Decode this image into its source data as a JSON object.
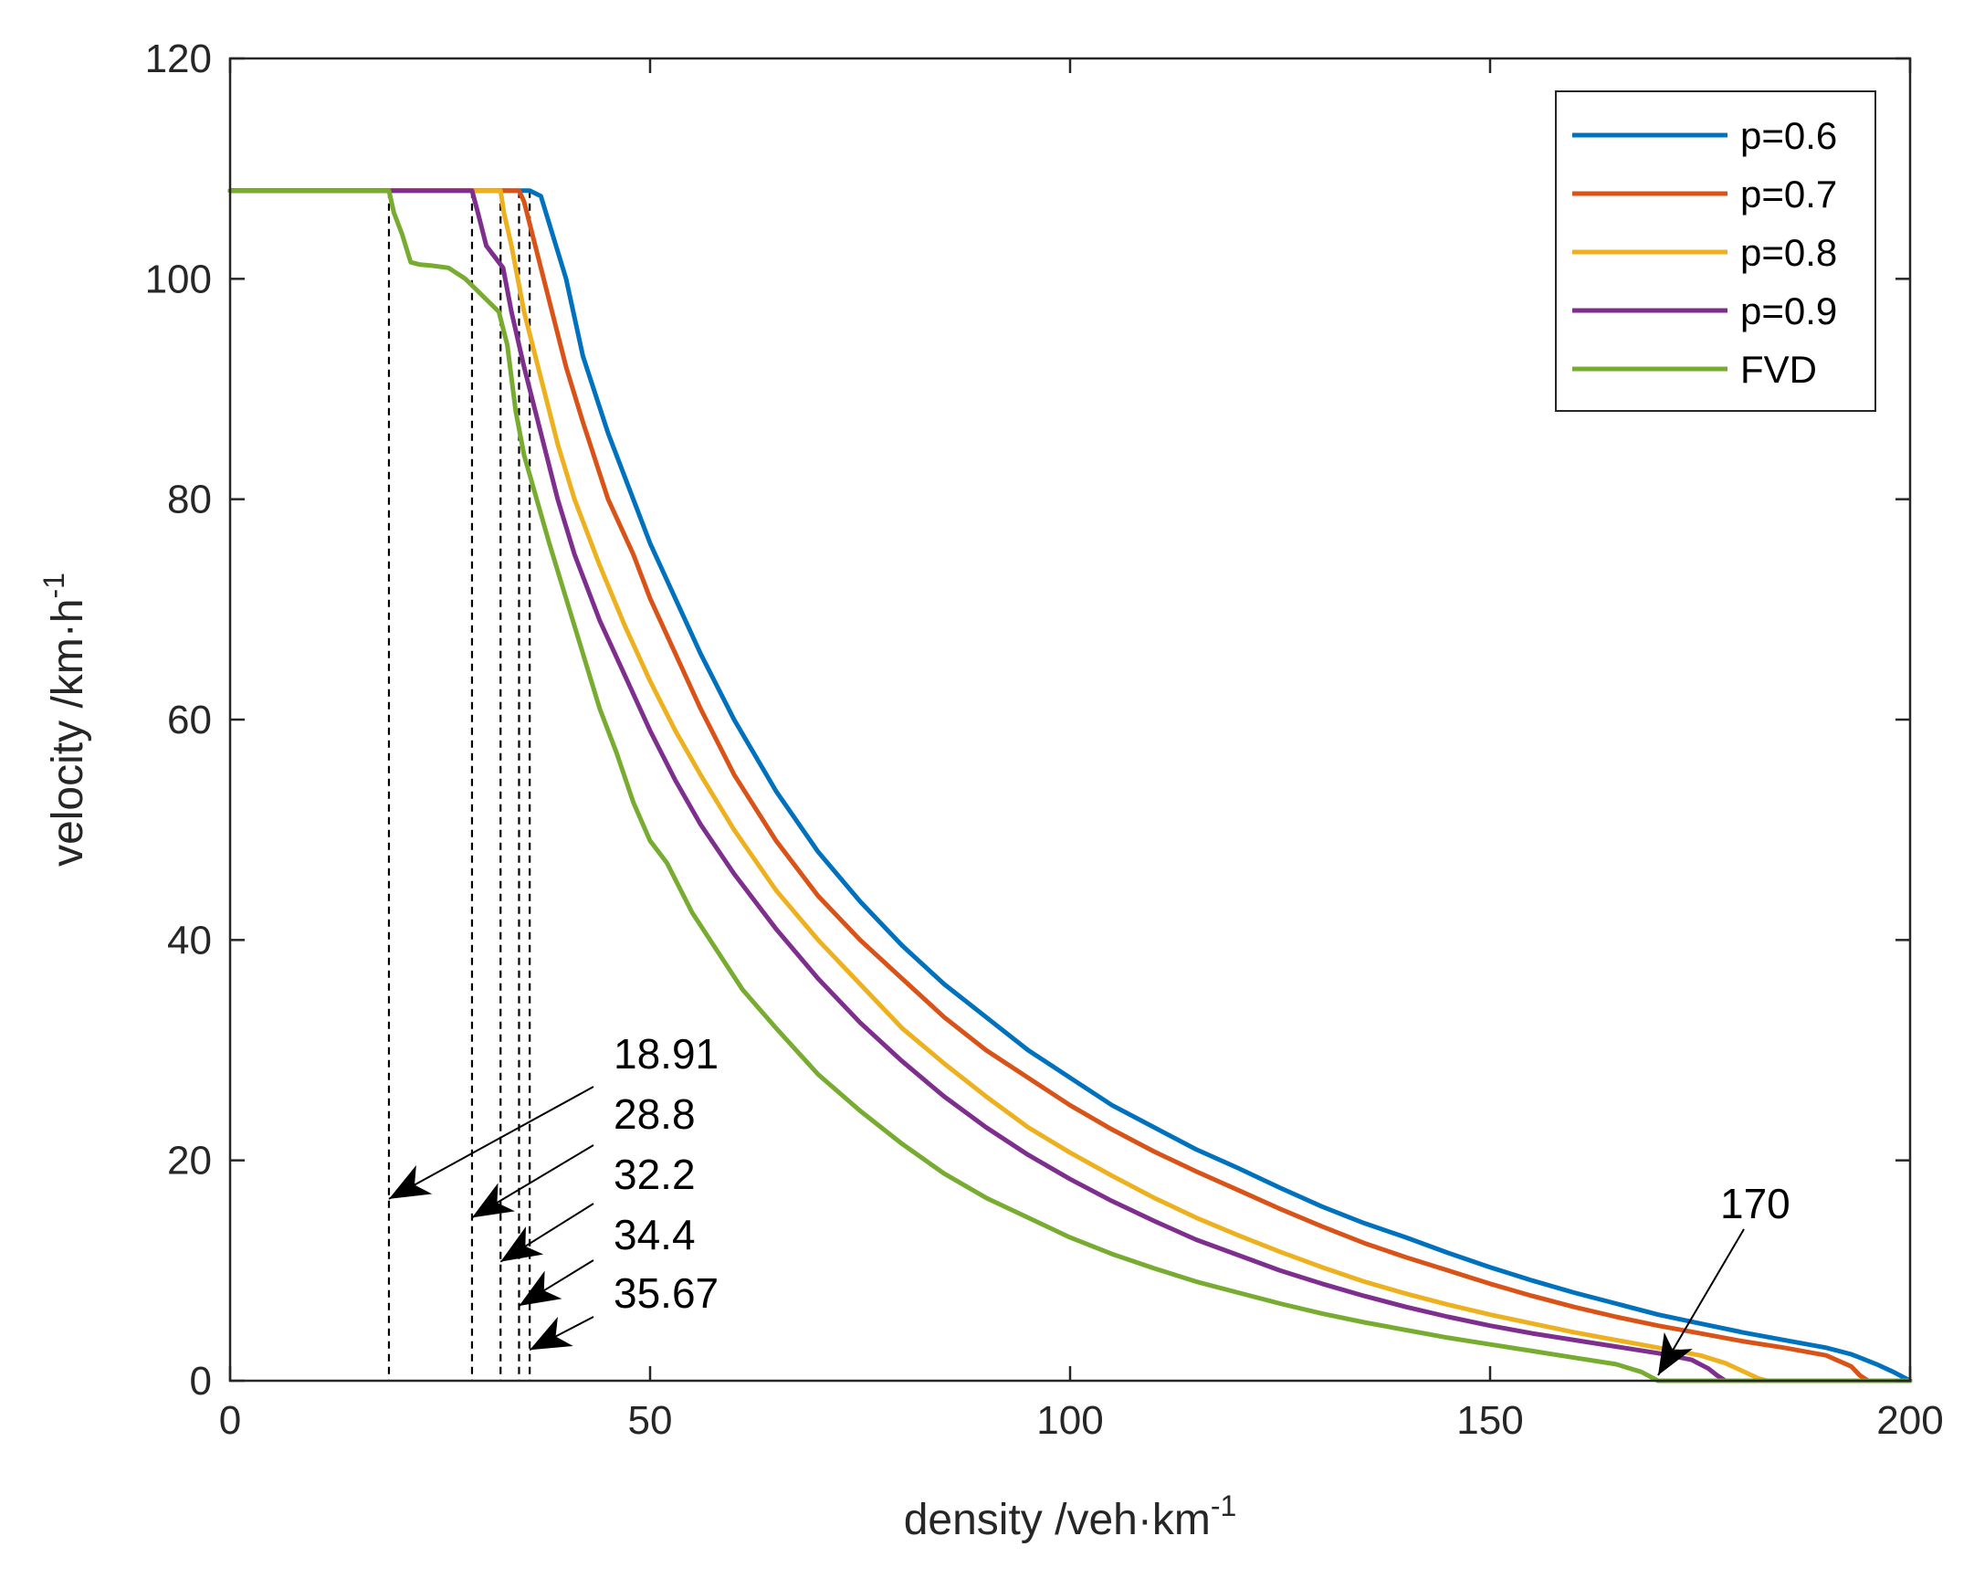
{
  "chart_data": {
    "type": "line",
    "title": "",
    "xlabel": "density /veh·km",
    "xlabel_sup": "-1",
    "ylabel": "velocity /km·h",
    "ylabel_sup": "-1",
    "xlim": [
      0,
      200
    ],
    "ylim": [
      0,
      120
    ],
    "xticks": [
      0,
      50,
      100,
      150,
      200
    ],
    "yticks": [
      0,
      20,
      40,
      60,
      80,
      100,
      120
    ],
    "grid": false,
    "legend_position": "top-right",
    "series": [
      {
        "name": "p=0.6",
        "color": "#0072BD",
        "points": [
          [
            0,
            108
          ],
          [
            35.67,
            108
          ],
          [
            37,
            107.5
          ],
          [
            38,
            105
          ],
          [
            40,
            100
          ],
          [
            42,
            93
          ],
          [
            45,
            86
          ],
          [
            48,
            80
          ],
          [
            50,
            76
          ],
          [
            53,
            71
          ],
          [
            56,
            66
          ],
          [
            60,
            60
          ],
          [
            65,
            53.5
          ],
          [
            70,
            48
          ],
          [
            75,
            43.5
          ],
          [
            80,
            39.5
          ],
          [
            85,
            36
          ],
          [
            90,
            33
          ],
          [
            95,
            30
          ],
          [
            100,
            27.5
          ],
          [
            105,
            25
          ],
          [
            110,
            23
          ],
          [
            115,
            21
          ],
          [
            120,
            19.3
          ],
          [
            125,
            17.5
          ],
          [
            130,
            15.8
          ],
          [
            135,
            14.3
          ],
          [
            140,
            13
          ],
          [
            145,
            11.6
          ],
          [
            150,
            10.3
          ],
          [
            155,
            9.1
          ],
          [
            160,
            8
          ],
          [
            165,
            7
          ],
          [
            170,
            6
          ],
          [
            175,
            5.2
          ],
          [
            180,
            4.4
          ],
          [
            185,
            3.7
          ],
          [
            190,
            3
          ],
          [
            193,
            2.4
          ],
          [
            196,
            1.5
          ],
          [
            198,
            0.8
          ],
          [
            200,
            0
          ]
        ]
      },
      {
        "name": "p=0.7",
        "color": "#D95319",
        "points": [
          [
            0,
            108
          ],
          [
            34.4,
            108
          ],
          [
            35,
            107
          ],
          [
            36,
            104
          ],
          [
            38,
            98
          ],
          [
            40,
            92
          ],
          [
            42,
            87
          ],
          [
            45,
            80
          ],
          [
            48,
            75
          ],
          [
            50,
            71
          ],
          [
            53,
            66
          ],
          [
            56,
            61
          ],
          [
            60,
            55
          ],
          [
            65,
            49
          ],
          [
            70,
            44
          ],
          [
            75,
            40
          ],
          [
            80,
            36.5
          ],
          [
            85,
            33
          ],
          [
            90,
            30
          ],
          [
            95,
            27.5
          ],
          [
            100,
            25
          ],
          [
            105,
            22.8
          ],
          [
            110,
            20.8
          ],
          [
            115,
            19
          ],
          [
            120,
            17.3
          ],
          [
            125,
            15.6
          ],
          [
            130,
            14
          ],
          [
            135,
            12.5
          ],
          [
            140,
            11.2
          ],
          [
            145,
            10
          ],
          [
            150,
            8.8
          ],
          [
            155,
            7.7
          ],
          [
            160,
            6.7
          ],
          [
            165,
            5.8
          ],
          [
            170,
            5
          ],
          [
            175,
            4.3
          ],
          [
            180,
            3.6
          ],
          [
            185,
            3
          ],
          [
            190,
            2.3
          ],
          [
            193,
            1.3
          ],
          [
            194,
            0.5
          ],
          [
            195,
            0
          ],
          [
            200,
            0
          ]
        ]
      },
      {
        "name": "p=0.8",
        "color": "#EDB120",
        "points": [
          [
            0,
            108
          ],
          [
            32.2,
            108
          ],
          [
            32.6,
            106
          ],
          [
            33.5,
            103
          ],
          [
            35,
            97
          ],
          [
            37,
            91
          ],
          [
            39,
            85
          ],
          [
            41,
            80
          ],
          [
            44,
            74
          ],
          [
            47,
            68.5
          ],
          [
            50,
            63.5
          ],
          [
            53,
            59
          ],
          [
            56,
            55
          ],
          [
            60,
            50
          ],
          [
            65,
            44.5
          ],
          [
            70,
            40
          ],
          [
            75,
            36
          ],
          [
            80,
            32
          ],
          [
            85,
            28.8
          ],
          [
            90,
            25.8
          ],
          [
            95,
            23
          ],
          [
            100,
            20.7
          ],
          [
            105,
            18.6
          ],
          [
            110,
            16.6
          ],
          [
            115,
            14.8
          ],
          [
            120,
            13.2
          ],
          [
            125,
            11.7
          ],
          [
            130,
            10.3
          ],
          [
            135,
            9
          ],
          [
            140,
            7.9
          ],
          [
            145,
            6.9
          ],
          [
            150,
            6
          ],
          [
            155,
            5.2
          ],
          [
            160,
            4.4
          ],
          [
            165,
            3.7
          ],
          [
            170,
            3
          ],
          [
            175,
            2.3
          ],
          [
            178,
            1.6
          ],
          [
            180,
            0.9
          ],
          [
            182,
            0.2
          ],
          [
            183,
            0
          ],
          [
            200,
            0
          ]
        ]
      },
      {
        "name": "p=0.9",
        "color": "#7E2F8E",
        "points": [
          [
            0,
            108
          ],
          [
            28.8,
            108
          ],
          [
            29.5,
            106
          ],
          [
            30.5,
            103
          ],
          [
            31.5,
            102
          ],
          [
            32.5,
            101
          ],
          [
            33.5,
            97
          ],
          [
            35,
            92
          ],
          [
            37,
            86
          ],
          [
            39,
            80
          ],
          [
            41,
            75
          ],
          [
            44,
            69
          ],
          [
            47,
            64
          ],
          [
            50,
            59
          ],
          [
            53,
            54.5
          ],
          [
            56,
            50.5
          ],
          [
            60,
            46
          ],
          [
            65,
            41
          ],
          [
            70,
            36.5
          ],
          [
            75,
            32.5
          ],
          [
            80,
            29
          ],
          [
            85,
            25.8
          ],
          [
            90,
            23
          ],
          [
            95,
            20.5
          ],
          [
            100,
            18.3
          ],
          [
            105,
            16.3
          ],
          [
            110,
            14.5
          ],
          [
            115,
            12.8
          ],
          [
            120,
            11.4
          ],
          [
            125,
            10
          ],
          [
            130,
            8.8
          ],
          [
            135,
            7.7
          ],
          [
            140,
            6.7
          ],
          [
            145,
            5.8
          ],
          [
            150,
            5
          ],
          [
            155,
            4.3
          ],
          [
            160,
            3.7
          ],
          [
            165,
            3.1
          ],
          [
            170,
            2.5
          ],
          [
            174,
            1.9
          ],
          [
            176,
            1.1
          ],
          [
            177,
            0.5
          ],
          [
            178,
            0
          ],
          [
            200,
            0
          ]
        ]
      },
      {
        "name": "FVD",
        "color": "#77AC30",
        "points": [
          [
            0,
            108
          ],
          [
            18.91,
            108
          ],
          [
            19.5,
            106
          ],
          [
            20.5,
            104
          ],
          [
            21.5,
            101.5
          ],
          [
            22.5,
            101.3
          ],
          [
            24,
            101.2
          ],
          [
            26,
            101
          ],
          [
            28,
            100
          ],
          [
            30,
            98.5
          ],
          [
            32,
            97
          ],
          [
            33,
            94
          ],
          [
            34,
            88
          ],
          [
            35,
            84
          ],
          [
            36.5,
            80
          ],
          [
            38,
            76
          ],
          [
            40,
            71
          ],
          [
            42,
            66
          ],
          [
            44,
            61
          ],
          [
            46,
            57
          ],
          [
            48,
            52.5
          ],
          [
            50,
            49
          ],
          [
            52,
            47
          ],
          [
            55,
            42.5
          ],
          [
            58,
            39
          ],
          [
            61,
            35.5
          ],
          [
            65,
            32
          ],
          [
            70,
            27.8
          ],
          [
            75,
            24.5
          ],
          [
            80,
            21.5
          ],
          [
            85,
            18.8
          ],
          [
            90,
            16.6
          ],
          [
            95,
            14.8
          ],
          [
            100,
            13
          ],
          [
            105,
            11.5
          ],
          [
            110,
            10.2
          ],
          [
            115,
            9
          ],
          [
            120,
            8
          ],
          [
            125,
            7
          ],
          [
            130,
            6.1
          ],
          [
            135,
            5.3
          ],
          [
            140,
            4.6
          ],
          [
            145,
            3.9
          ],
          [
            150,
            3.3
          ],
          [
            155,
            2.7
          ],
          [
            160,
            2.1
          ],
          [
            165,
            1.5
          ],
          [
            168,
            0.8
          ],
          [
            170,
            0
          ],
          [
            200,
            0
          ]
        ]
      }
    ],
    "dashed_lines": [
      18.91,
      28.8,
      32.2,
      34.4,
      35.67
    ],
    "annotations": [
      {
        "label": "18.91",
        "x": 18.91
      },
      {
        "label": "28.8",
        "x": 28.8
      },
      {
        "label": "32.2",
        "x": 32.2
      },
      {
        "label": "34.4",
        "x": 34.4
      },
      {
        "label": "35.67",
        "x": 35.67
      },
      {
        "label": "170",
        "x": 170
      }
    ]
  }
}
